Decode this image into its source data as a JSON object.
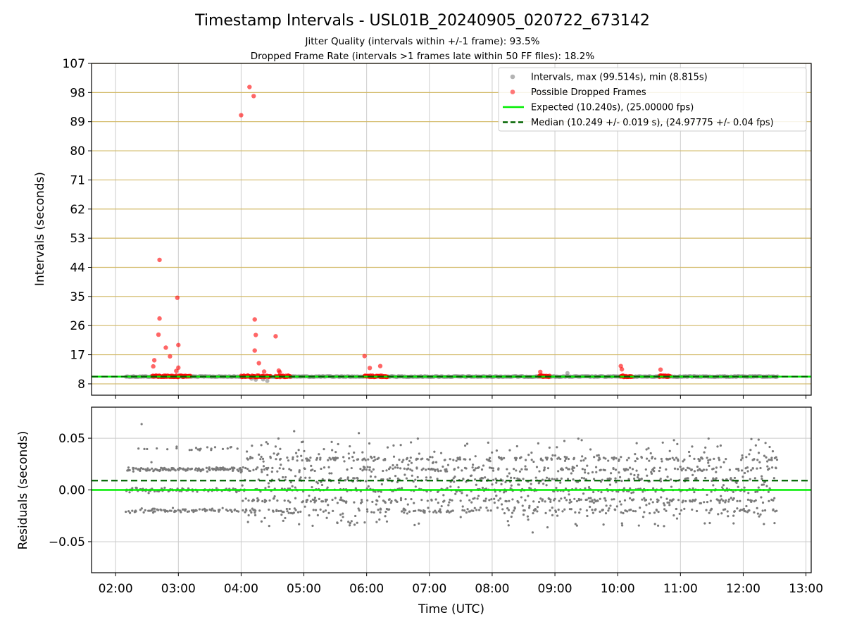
{
  "title": "Timestamp Intervals - USL01B_20240905_020722_673142",
  "subtitle_1": "Jitter Quality (intervals within +/-1 frame): 93.5%",
  "subtitle_2": "Dropped Frame Rate (intervals >1 frames late within 50 FF files): 18.2%",
  "colors": {
    "intervals": "#808080",
    "dropped": "#ff0000",
    "expected": "#00ee00",
    "median": "#006400",
    "hgrid": "#d2b966",
    "grid": "#cccccc"
  },
  "chart_data": [
    {
      "type": "scatter",
      "panel": "intervals",
      "ylabel": "Intervals (seconds)",
      "xlabel": "",
      "ylim": [
        4.5,
        107
      ],
      "xlim": [
        "01:37",
        "13:05"
      ],
      "yticks": [
        8,
        17,
        26,
        35,
        44,
        53,
        62,
        71,
        80,
        89,
        98,
        107
      ],
      "grid": true,
      "legend_position": "top-right",
      "legend": [
        {
          "label": "Intervals, max (99.514s), min (8.815s)",
          "kind": "dot",
          "color": "#a0a0a0"
        },
        {
          "label": "Possible Dropped Frames",
          "kind": "dot",
          "color": "#ff5555"
        },
        {
          "label": "Expected (10.240s), (25.00000 fps)",
          "kind": "line",
          "color": "#00ee00"
        },
        {
          "label": "Median (10.249 +/- 0.019 s), (24.97775 +/- 0.04 fps)",
          "kind": "dash",
          "color": "#006400"
        }
      ],
      "expected": 10.24,
      "median": 10.249,
      "baseline_range": [
        "02:10",
        "12:33"
      ],
      "baseline_value": 10.25,
      "dropped_runs": [
        [
          "02:35",
          "03:12"
        ],
        [
          "04:00",
          "04:28"
        ],
        [
          "04:33",
          "04:47"
        ],
        [
          "05:58",
          "06:20"
        ],
        [
          "08:45",
          "08:55"
        ],
        [
          "10:03",
          "10:14"
        ],
        [
          "10:40",
          "10:50"
        ]
      ],
      "dropped_points": [
        {
          "t": "02:36",
          "y": 13.4
        },
        {
          "t": "02:37",
          "y": 15.3
        },
        {
          "t": "02:42",
          "y": 46.3
        },
        {
          "t": "02:42",
          "y": 28.2
        },
        {
          "t": "02:41",
          "y": 23.2
        },
        {
          "t": "02:48",
          "y": 19.2
        },
        {
          "t": "02:52",
          "y": 16.5
        },
        {
          "t": "02:59",
          "y": 34.6
        },
        {
          "t": "03:00",
          "y": 20.0
        },
        {
          "t": "03:00",
          "y": 13.0
        },
        {
          "t": "02:58",
          "y": 12.0
        },
        {
          "t": "04:00",
          "y": 91.0
        },
        {
          "t": "04:08",
          "y": 99.7
        },
        {
          "t": "04:12",
          "y": 96.9
        },
        {
          "t": "04:13",
          "y": 27.9
        },
        {
          "t": "04:14",
          "y": 23.1
        },
        {
          "t": "04:13",
          "y": 18.3
        },
        {
          "t": "04:17",
          "y": 14.4
        },
        {
          "t": "04:22",
          "y": 11.8
        },
        {
          "t": "04:33",
          "y": 22.7
        },
        {
          "t": "04:36",
          "y": 12.1
        },
        {
          "t": "04:37",
          "y": 11.6
        },
        {
          "t": "05:58",
          "y": 16.6
        },
        {
          "t": "06:03",
          "y": 12.9
        },
        {
          "t": "06:13",
          "y": 13.5
        },
        {
          "t": "08:46",
          "y": 11.7
        },
        {
          "t": "10:03",
          "y": 13.5
        },
        {
          "t": "10:04",
          "y": 12.5
        },
        {
          "t": "10:41",
          "y": 12.4
        }
      ],
      "low_points": [
        {
          "t": "04:10",
          "y": 9.6
        },
        {
          "t": "04:14",
          "y": 9.3
        },
        {
          "t": "04:21",
          "y": 9.4
        },
        {
          "t": "04:25",
          "y": 8.9
        },
        {
          "t": "09:12",
          "y": 11.3
        }
      ]
    },
    {
      "type": "scatter",
      "panel": "residuals",
      "ylabel": "Residuals (seconds)",
      "xlabel": "Time (UTC)",
      "ylim": [
        -0.08,
        0.08
      ],
      "yticks": [
        -0.05,
        0.0,
        0.05
      ],
      "ytick_labels": [
        "−0.05",
        "0.00",
        "0.05"
      ],
      "xticks": [
        "02:00",
        "03:00",
        "04:00",
        "05:00",
        "06:00",
        "07:00",
        "08:00",
        "09:00",
        "10:00",
        "11:00",
        "12:00",
        "13:00"
      ],
      "expected": 0.0,
      "median": 0.009,
      "grid": true,
      "clusters_early": [
        -0.02,
        0.0,
        0.02,
        0.04
      ],
      "clusters_late": [
        -0.02,
        -0.01,
        0.0,
        0.01,
        0.02,
        0.03
      ],
      "spread": [
        -0.05,
        0.072
      ]
    }
  ]
}
